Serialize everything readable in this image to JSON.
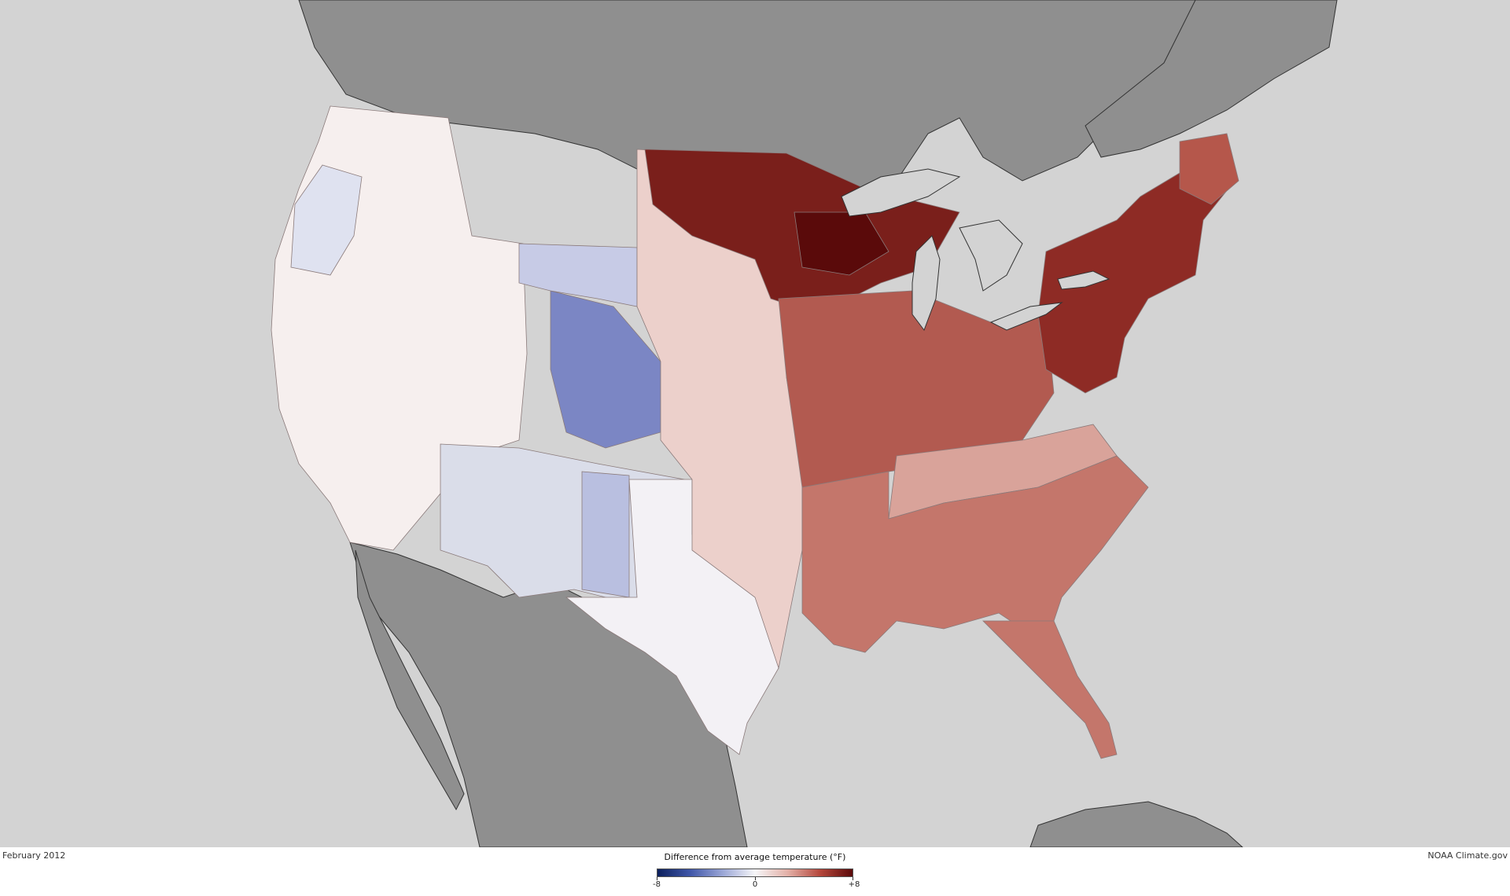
{
  "map": {
    "date": "February 2012",
    "credit": "NOAA Climate.gov",
    "legend": {
      "title": "Difference from average temperature (°F)",
      "min_label": "-8",
      "mid_label": "0",
      "max_label": "+8",
      "min": -8,
      "max": 8,
      "colors": [
        "#0b1f5c",
        "#3f56a8",
        "#9aa6d6",
        "#f6f6f8",
        "#e3b1a8",
        "#b5473c",
        "#5b0a0a"
      ]
    },
    "colors": {
      "ocean": "#d3d3d3",
      "land": "#8f8f8f",
      "state_border": "#8a7a7a",
      "coast": "#333333"
    }
  }
}
